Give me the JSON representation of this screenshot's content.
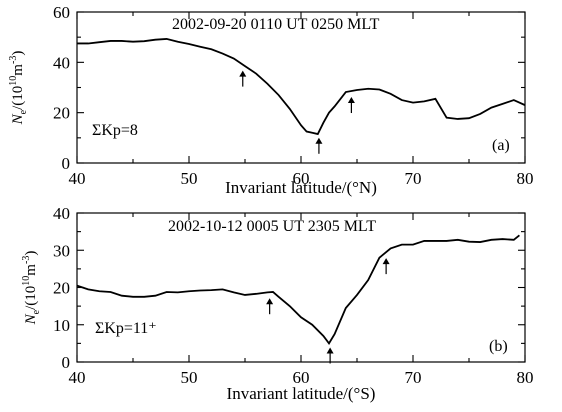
{
  "chart_data": [
    {
      "type": "line",
      "xlabel": "Invariant latitude/(°N)",
      "ylabel": "Ne/(10^10 m^-3)",
      "xlim": [
        40,
        80
      ],
      "ylim": [
        0,
        60
      ],
      "x_ticks": [
        "40",
        "50",
        "60",
        "70",
        "80"
      ],
      "y_ticks": [
        "0",
        "20",
        "40",
        "60"
      ],
      "title": "2002-09-20   0110 UT   0250 MLT",
      "annotation": "ΣKp=8",
      "panel_label": "(a)",
      "grid": false,
      "x": [
        40,
        41,
        42,
        43,
        44,
        45,
        46,
        47,
        48,
        49,
        50,
        51,
        52,
        53,
        54,
        55,
        56,
        57,
        58,
        59,
        60,
        60.5,
        61,
        61.5,
        62,
        62.5,
        63,
        64,
        65,
        66,
        67,
        68,
        69,
        70,
        71,
        72,
        73,
        74,
        75,
        76,
        77,
        78,
        79,
        80
      ],
      "values": [
        47.5,
        47.5,
        48,
        48.5,
        48.5,
        48.2,
        48.4,
        49,
        49.3,
        48.2,
        47.3,
        46.2,
        45.2,
        43.5,
        41.5,
        38.5,
        35.5,
        31.5,
        27,
        21.5,
        15,
        12.5,
        12,
        11.5,
        16,
        20,
        22.5,
        28.2,
        29,
        29.5,
        29.2,
        27.5,
        25,
        24,
        24.5,
        25.5,
        18,
        17.5,
        17.8,
        19.5,
        22,
        23.5,
        25,
        23
      ],
      "arrows_at_x": [
        54.8,
        61.6,
        64.5
      ]
    },
    {
      "type": "line",
      "xlabel": "Invariant latitude/(°S)",
      "ylabel": "Ne/(10^10 m^-3)",
      "xlim": [
        40,
        80
      ],
      "ylim": [
        0,
        40
      ],
      "x_ticks": [
        "40",
        "50",
        "60",
        "70",
        "80"
      ],
      "y_ticks": [
        "0",
        "10",
        "20",
        "30",
        "40"
      ],
      "title": "2002-10-12   0005 UT   2305 MLT",
      "annotation": "ΣKp=11⁺",
      "panel_label": "(b)",
      "grid": false,
      "x": [
        40,
        41,
        42,
        43,
        44,
        45,
        46,
        47,
        48,
        49,
        50,
        51,
        52,
        53,
        54,
        55,
        56,
        57,
        57.5,
        58,
        59,
        60,
        61,
        62,
        62.5,
        63,
        64,
        65,
        66,
        67,
        68,
        69,
        70,
        71,
        72,
        73,
        74,
        75,
        76,
        77,
        78,
        79,
        79.5
      ],
      "values": [
        20.5,
        19.5,
        19,
        18.8,
        17.8,
        17.5,
        17.5,
        17.8,
        18.8,
        18.7,
        19,
        19.2,
        19.3,
        19.5,
        18.7,
        18,
        18.3,
        18.7,
        18.8,
        17.5,
        15,
        12,
        10,
        7,
        5,
        7.5,
        14.5,
        18,
        22,
        28,
        30.5,
        31.5,
        31.5,
        32.5,
        32.5,
        32.5,
        32.8,
        32.3,
        32.2,
        32.8,
        33,
        32.8,
        34
      ],
      "arrows_at_x": [
        57.2,
        62.6,
        67.6
      ]
    }
  ]
}
